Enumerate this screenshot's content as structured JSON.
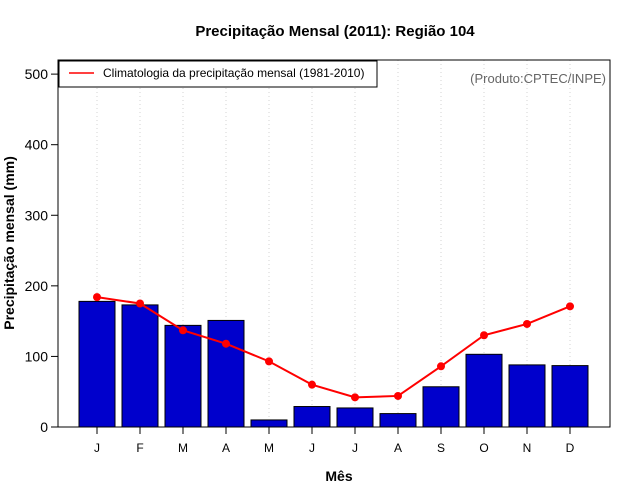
{
  "chart_data": {
    "type": "bar",
    "title": "Precipitação Mensal (2011): Região 104",
    "xlabel": "Mês",
    "ylabel": "Precipitação mensal (mm)",
    "ylim": [
      0,
      520
    ],
    "yticks": [
      0,
      100,
      200,
      300,
      400,
      500
    ],
    "categories": [
      "J",
      "F",
      "M",
      "A",
      "M",
      "J",
      "J",
      "A",
      "S",
      "O",
      "N",
      "D"
    ],
    "series": [
      {
        "name": "Precipitação mensal (2011)",
        "type": "bar",
        "color": "#0000cc",
        "values": [
          178,
          173,
          144,
          151,
          10,
          29,
          27,
          19,
          57,
          103,
          88,
          87
        ]
      },
      {
        "name": "Climatologia da precipitação mensal (1981-2010)",
        "type": "line",
        "color": "#ff0000",
        "values": [
          184,
          175,
          137,
          118,
          93,
          60,
          42,
          44,
          86,
          130,
          146,
          171
        ]
      }
    ],
    "legend": {
      "label": "Climatologia da precipitação mensal (1981-2010)",
      "position": "top-left"
    },
    "source": "(Produto:CPTEC/INPE)",
    "grid": "vertical-dotted"
  }
}
